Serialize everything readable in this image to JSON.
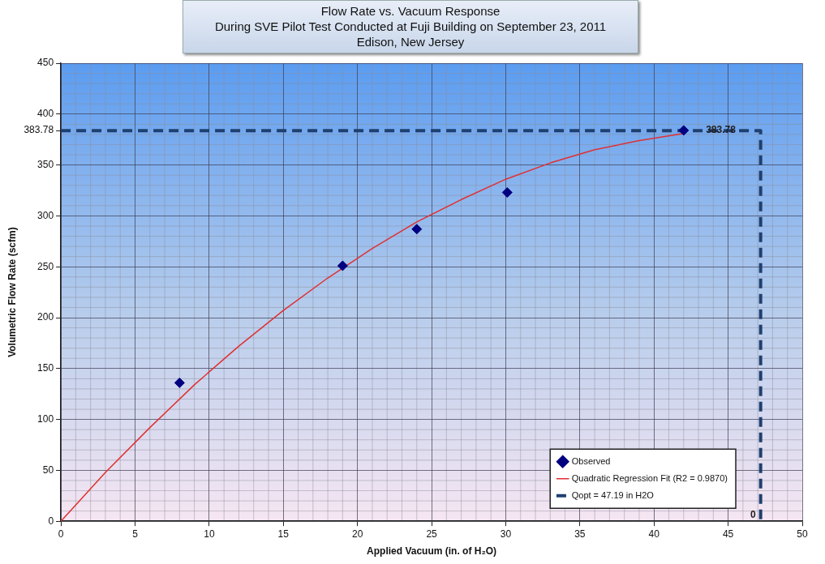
{
  "chart_data": {
    "type": "scatter",
    "title": "Flow Rate vs. Vacuum Response\nDuring SVE Pilot Test Conducted at Fuji Building on September 23, 2011\nEdison, New Jersey",
    "xlabel": "Applied Vacuum (in. of H₂O)",
    "ylabel": "Volumetric Flow Rate (scfm)",
    "xlim": [
      0,
      50
    ],
    "xticks": [
      0,
      5,
      10,
      15,
      20,
      25,
      30,
      35,
      40,
      45,
      50
    ],
    "ylim": [
      0,
      450
    ],
    "yticks": [
      0,
      50,
      100,
      150,
      200,
      250,
      300,
      350,
      {
        "value": 383.78,
        "label": "383.78"
      },
      400,
      450
    ],
    "grid": true,
    "legend": "bottom right",
    "series": [
      {
        "name": "Observed",
        "type": "scatter",
        "marker": "diamond",
        "color": "#000080",
        "x": [
          8,
          19,
          24,
          30.1,
          42
        ],
        "values": [
          136,
          251,
          287,
          323,
          384
        ]
      },
      {
        "name": "Quadratic Regression Fit (R2 = 0.9870)",
        "type": "line",
        "marker": "none",
        "line_style": "solid",
        "color": "#e03030",
        "x": [
          0,
          3,
          6,
          9,
          12,
          15,
          18,
          21,
          24,
          27,
          30,
          33,
          36,
          39,
          42
        ],
        "values": [
          0,
          48,
          92,
          134,
          172,
          207,
          239,
          268,
          294,
          316,
          336,
          352,
          365,
          374,
          381
        ]
      },
      {
        "name": "Qopt = 47.19 in H2O",
        "type": "line",
        "marker": "none",
        "line_style": "dashed",
        "color": "#1f3f6f",
        "x": [
          0,
          47.19,
          47.19
        ],
        "values": [
          383.78,
          383.78,
          0
        ]
      }
    ],
    "annotations": [
      {
        "text": "383.78",
        "x": 44.5,
        "y": 383.78
      },
      {
        "text": "0",
        "x": 47.19,
        "y": 0
      }
    ]
  }
}
